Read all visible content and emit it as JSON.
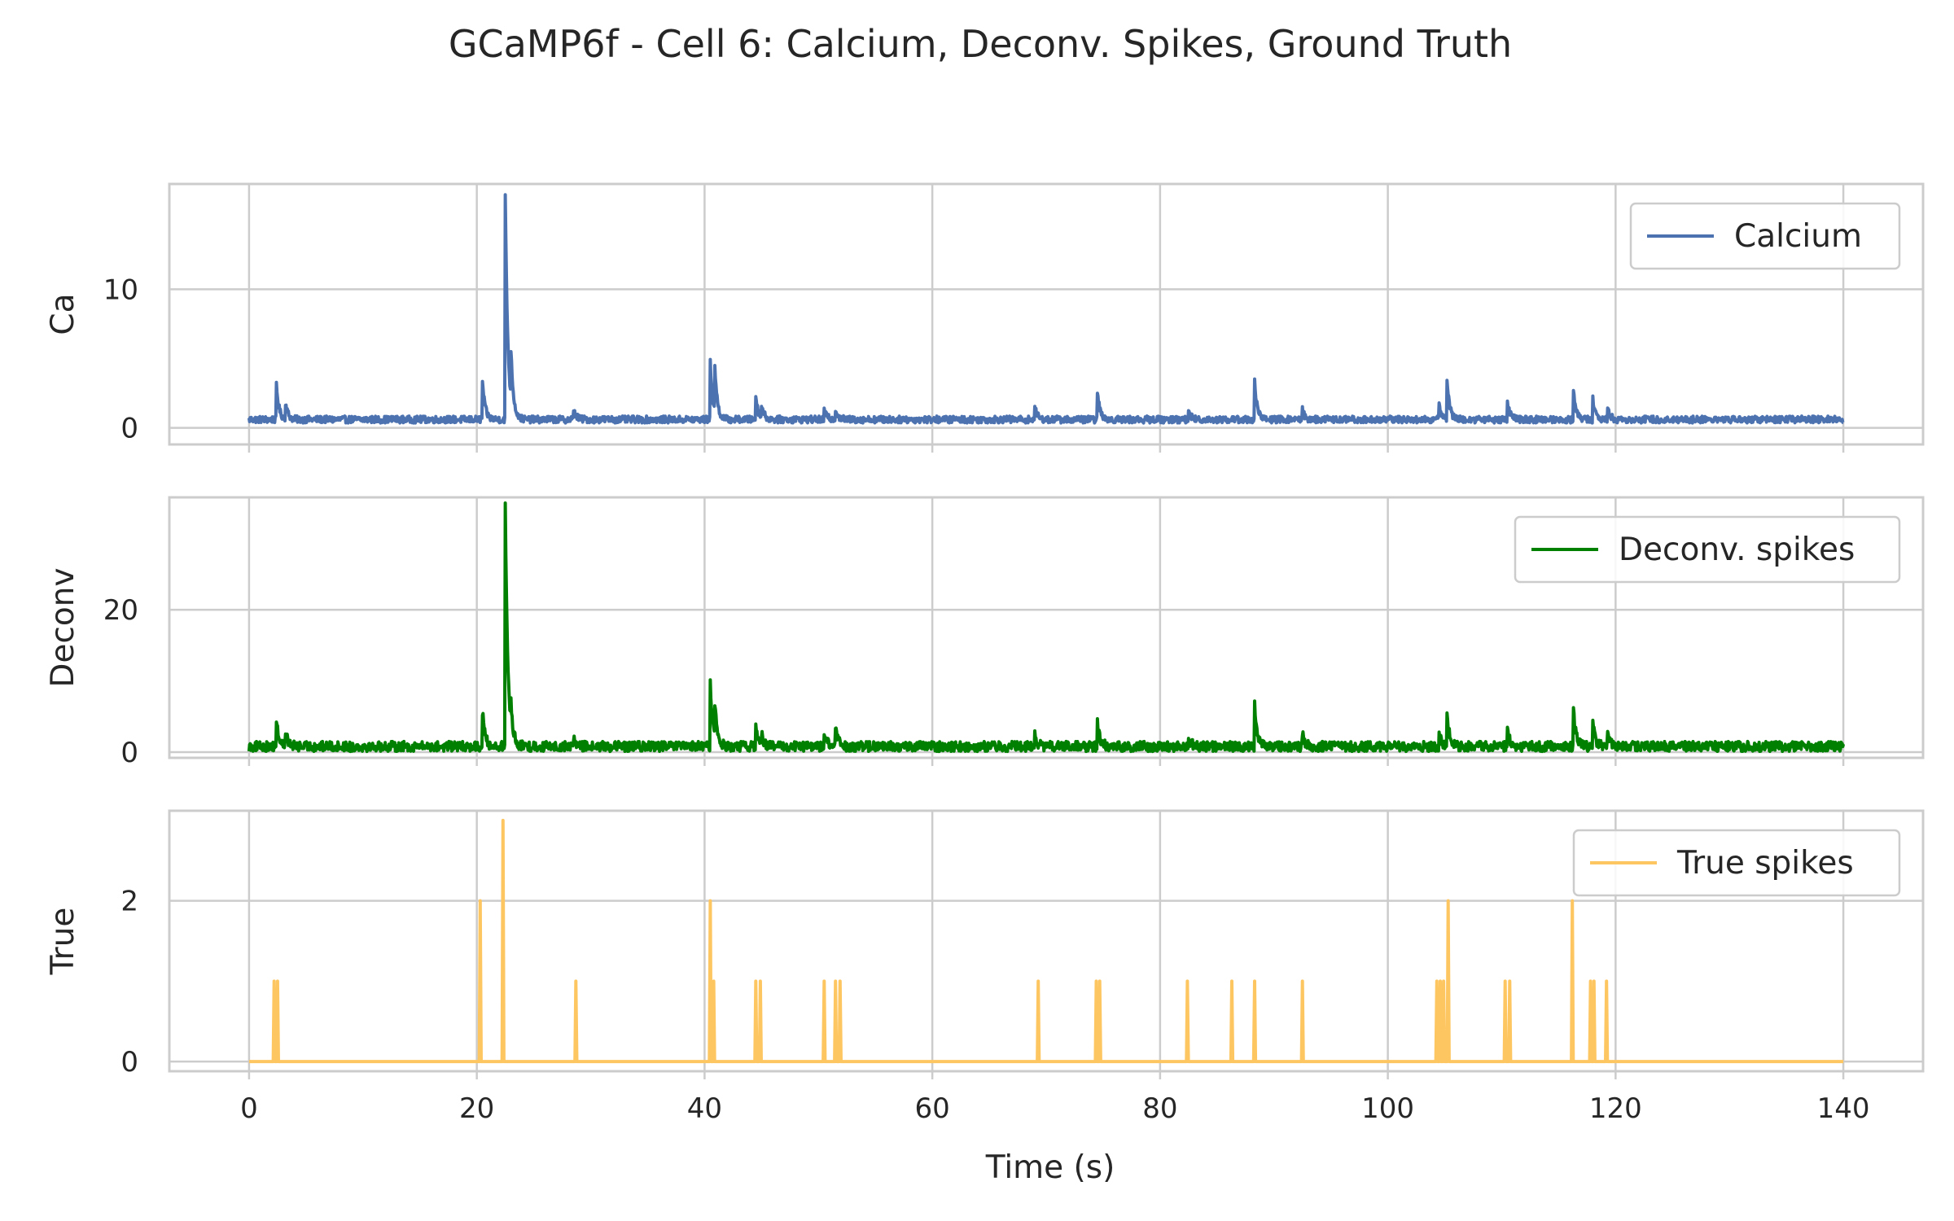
{
  "chart_data": {
    "type": "line",
    "title": "GCaMP6f - Cell 6: Calcium, Deconv. Spikes, Ground Truth",
    "xlabel": "Time (s)",
    "xlim": [
      -7,
      147
    ],
    "x_ticks": [
      "0",
      "20",
      "40",
      "60",
      "80",
      "100",
      "120",
      "140"
    ],
    "x_tick_values": [
      0,
      20,
      40,
      60,
      80,
      100,
      120,
      140
    ],
    "grid": true,
    "legend_placement": "top-right",
    "shared_x": true,
    "panels": [
      {
        "ylabel": "Ca",
        "ylim": [
          -1.2,
          17.6
        ],
        "y_ticks": [
          "0",
          "10"
        ],
        "y_tick_values": [
          0,
          10
        ],
        "series": [
          {
            "name": "Calcium",
            "color": "#4c72b0",
            "x_range": [
              0,
              140
            ],
            "baseline": 0.6,
            "noise": 0.25,
            "events": [
              [
                2.4,
                3.1
              ],
              [
                3.2,
                1.8
              ],
              [
                20.5,
                3.4
              ],
              [
                22.5,
                16.8
              ],
              [
                23.0,
                4.0
              ],
              [
                28.5,
                1.4
              ],
              [
                40.5,
                4.7
              ],
              [
                40.9,
                3.8
              ],
              [
                44.5,
                2.3
              ],
              [
                45.0,
                1.6
              ],
              [
                50.5,
                1.3
              ],
              [
                51.5,
                1.4
              ],
              [
                69.0,
                1.5
              ],
              [
                74.5,
                2.6
              ],
              [
                82.5,
                1.2
              ],
              [
                88.3,
                3.3
              ],
              [
                92.5,
                1.3
              ],
              [
                104.5,
                1.8
              ],
              [
                105.2,
                3.6
              ],
              [
                110.5,
                1.9
              ],
              [
                116.3,
                2.8
              ],
              [
                118.0,
                2.1
              ],
              [
                119.3,
                1.4
              ]
            ]
          }
        ]
      },
      {
        "ylabel": "Deconv",
        "ylim": [
          -0.8,
          35.8
        ],
        "y_ticks": [
          "0",
          "20"
        ],
        "y_tick_values": [
          0,
          20
        ],
        "series": [
          {
            "name": "Deconv. spikes",
            "color": "#008000",
            "x_range": [
              0,
              140
            ],
            "baseline": 0.8,
            "noise": 0.7,
            "events": [
              [
                2.4,
                4.5
              ],
              [
                3.2,
                2.8
              ],
              [
                20.5,
                5.8
              ],
              [
                22.5,
                34.6
              ],
              [
                23.0,
                3.5
              ],
              [
                28.5,
                2.0
              ],
              [
                40.5,
                10.0
              ],
              [
                40.9,
                5.5
              ],
              [
                44.5,
                3.8
              ],
              [
                45.0,
                2.5
              ],
              [
                50.5,
                3.0
              ],
              [
                51.5,
                3.5
              ],
              [
                69.0,
                2.5
              ],
              [
                74.5,
                4.5
              ],
              [
                82.5,
                2.0
              ],
              [
                88.3,
                6.8
              ],
              [
                92.5,
                2.5
              ],
              [
                104.5,
                3.0
              ],
              [
                105.2,
                5.5
              ],
              [
                110.5,
                3.5
              ],
              [
                116.3,
                5.8
              ],
              [
                118.0,
                4.0
              ],
              [
                119.3,
                2.8
              ]
            ]
          }
        ]
      },
      {
        "ylabel": "True",
        "ylim": [
          -0.12,
          3.12
        ],
        "y_ticks": [
          "0",
          "2"
        ],
        "y_tick_values": [
          0,
          2
        ],
        "series": [
          {
            "name": "True spikes",
            "color": "#fec661",
            "x_range": [
              0,
              140
            ],
            "baseline": 0,
            "spikes": [
              [
                2.2,
                1
              ],
              [
                2.5,
                1
              ],
              [
                20.3,
                2
              ],
              [
                22.3,
                3
              ],
              [
                28.7,
                1
              ],
              [
                40.5,
                2
              ],
              [
                40.8,
                1
              ],
              [
                44.5,
                1
              ],
              [
                44.9,
                1
              ],
              [
                50.5,
                1
              ],
              [
                51.5,
                1
              ],
              [
                51.9,
                1
              ],
              [
                69.3,
                1
              ],
              [
                74.4,
                1
              ],
              [
                74.7,
                1
              ],
              [
                82.4,
                1
              ],
              [
                86.3,
                1
              ],
              [
                88.3,
                1
              ],
              [
                92.5,
                1
              ],
              [
                104.3,
                1
              ],
              [
                104.6,
                1
              ],
              [
                104.9,
                1
              ],
              [
                105.3,
                2
              ],
              [
                110.3,
                1
              ],
              [
                110.7,
                1
              ],
              [
                116.2,
                2
              ],
              [
                117.8,
                1
              ],
              [
                118.1,
                1
              ],
              [
                119.2,
                1
              ]
            ]
          }
        ]
      }
    ]
  }
}
